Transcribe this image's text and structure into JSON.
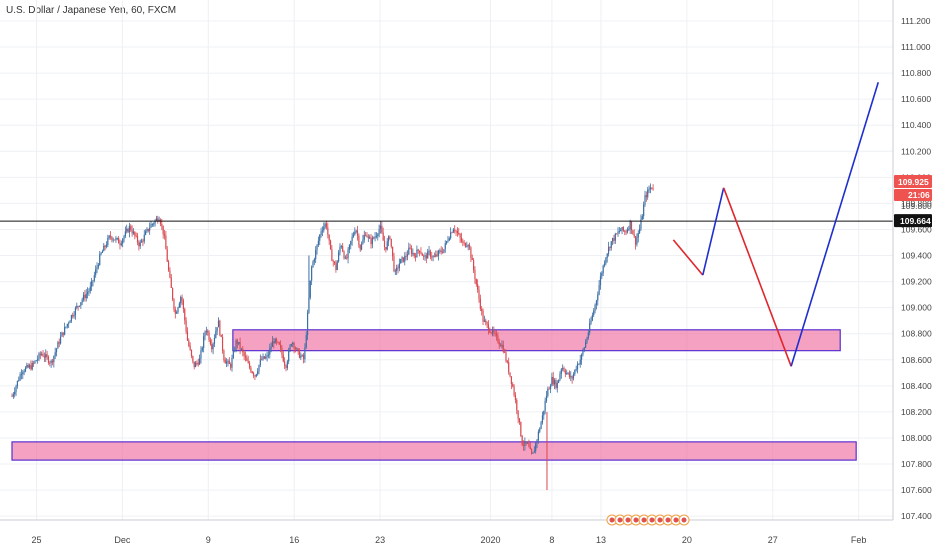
{
  "chart_data": {
    "type": "candlestick",
    "title": "U.S. Dollar / Japanese Yen, 60, FXCM",
    "ylim": [
      107.3,
      111.3
    ],
    "y_ticks": [
      "111.200",
      "111.000",
      "110.800",
      "110.600",
      "110.400",
      "110.200",
      "110.000",
      "109.800",
      "109.600",
      "109.400",
      "109.200",
      "109.000",
      "108.800",
      "108.600",
      "108.400",
      "108.200",
      "108.000",
      "107.800",
      "107.600",
      "107.400"
    ],
    "x_ticks": [
      "25",
      "Dec",
      "9",
      "16",
      "23",
      "2020",
      "8",
      "13",
      "20",
      "27",
      "Feb"
    ],
    "price_badges": {
      "last": "109.925",
      "countdown": "21:06",
      "hline": "109.664",
      "hidden_tick": "109.800"
    },
    "hline_value": 109.664,
    "zones": [
      {
        "from_day": 18,
        "to_day": 67.5,
        "low": 108.67,
        "high": 108.83
      },
      {
        "from_day": 0,
        "to_day": 68.8,
        "low": 107.83,
        "high": 107.97
      }
    ],
    "projection": [
      {
        "day": 53.9,
        "price": 109.52,
        "color": "red"
      },
      {
        "day": 56.3,
        "price": 109.25,
        "color": "blue"
      },
      {
        "day": 58.0,
        "price": 109.92,
        "color": "red"
      },
      {
        "day": 63.5,
        "price": 108.55,
        "color": "blue"
      },
      {
        "day": 70.6,
        "price": 110.73,
        "color": "blue"
      }
    ],
    "price_path": [
      [
        0.0,
        108.32
      ],
      [
        0.8,
        108.52
      ],
      [
        1.6,
        108.55
      ],
      [
        2.4,
        108.65
      ],
      [
        3.2,
        108.58
      ],
      [
        4.0,
        108.78
      ],
      [
        4.8,
        108.93
      ],
      [
        5.6,
        109.05
      ],
      [
        6.4,
        109.15
      ],
      [
        7.2,
        109.4
      ],
      [
        8.0,
        109.55
      ],
      [
        8.8,
        109.5
      ],
      [
        9.6,
        109.62
      ],
      [
        10.4,
        109.48
      ],
      [
        11.2,
        109.62
      ],
      [
        12.0,
        109.7
      ],
      [
        12.4,
        109.55
      ],
      [
        12.8,
        109.25
      ],
      [
        13.3,
        108.95
      ],
      [
        13.8,
        109.1
      ],
      [
        14.3,
        108.75
      ],
      [
        14.8,
        108.55
      ],
      [
        15.3,
        108.6
      ],
      [
        15.8,
        108.85
      ],
      [
        16.3,
        108.7
      ],
      [
        16.8,
        108.9
      ],
      [
        17.3,
        108.6
      ],
      [
        17.8,
        108.55
      ],
      [
        18.3,
        108.75
      ],
      [
        18.8,
        108.65
      ],
      [
        19.3,
        108.55
      ],
      [
        19.8,
        108.48
      ],
      [
        20.3,
        108.6
      ],
      [
        20.8,
        108.62
      ],
      [
        21.3,
        108.75
      ],
      [
        21.8,
        108.7
      ],
      [
        22.3,
        108.55
      ],
      [
        22.8,
        108.75
      ],
      [
        23.3,
        108.65
      ],
      [
        23.8,
        108.6
      ],
      [
        24.1,
        108.95
      ],
      [
        24.4,
        109.3
      ],
      [
        24.8,
        109.45
      ],
      [
        25.2,
        109.6
      ],
      [
        25.6,
        109.65
      ],
      [
        26.0,
        109.4
      ],
      [
        26.4,
        109.3
      ],
      [
        26.8,
        109.5
      ],
      [
        27.2,
        109.35
      ],
      [
        27.6,
        109.5
      ],
      [
        28.0,
        109.62
      ],
      [
        28.4,
        109.45
      ],
      [
        28.8,
        109.58
      ],
      [
        29.2,
        109.5
      ],
      [
        29.6,
        109.55
      ],
      [
        30.0,
        109.62
      ],
      [
        30.4,
        109.45
      ],
      [
        30.8,
        109.55
      ],
      [
        31.2,
        109.25
      ],
      [
        31.6,
        109.35
      ],
      [
        32.0,
        109.38
      ],
      [
        32.4,
        109.45
      ],
      [
        32.8,
        109.4
      ],
      [
        33.2,
        109.45
      ],
      [
        33.6,
        109.38
      ],
      [
        34.0,
        109.42
      ],
      [
        34.4,
        109.38
      ],
      [
        34.8,
        109.42
      ],
      [
        35.2,
        109.45
      ],
      [
        35.6,
        109.55
      ],
      [
        36.0,
        109.62
      ],
      [
        36.4,
        109.55
      ],
      [
        36.8,
        109.48
      ],
      [
        37.2,
        109.5
      ],
      [
        37.6,
        109.3
      ],
      [
        38.0,
        109.1
      ],
      [
        38.4,
        108.9
      ],
      [
        38.8,
        108.85
      ],
      [
        39.2,
        108.8
      ],
      [
        39.6,
        108.75
      ],
      [
        40.0,
        108.7
      ],
      [
        40.4,
        108.55
      ],
      [
        40.8,
        108.4
      ],
      [
        41.2,
        108.2
      ],
      [
        41.6,
        107.95
      ],
      [
        42.0,
        107.95
      ],
      [
        42.4,
        107.85
      ],
      [
        42.8,
        108.0
      ],
      [
        43.2,
        108.15
      ],
      [
        43.6,
        108.35
      ],
      [
        44.0,
        108.45
      ],
      [
        44.4,
        108.4
      ],
      [
        44.8,
        108.55
      ],
      [
        45.2,
        108.5
      ],
      [
        45.6,
        108.45
      ],
      [
        46.0,
        108.55
      ],
      [
        46.4,
        108.62
      ],
      [
        46.8,
        108.75
      ],
      [
        47.2,
        108.9
      ],
      [
        47.6,
        109.05
      ],
      [
        48.0,
        109.25
      ],
      [
        48.4,
        109.4
      ],
      [
        48.8,
        109.5
      ],
      [
        49.2,
        109.55
      ],
      [
        49.6,
        109.6
      ],
      [
        50.0,
        109.58
      ],
      [
        50.4,
        109.65
      ],
      [
        50.8,
        109.5
      ],
      [
        51.2,
        109.62
      ],
      [
        51.6,
        109.85
      ],
      [
        52.0,
        109.92
      ],
      [
        52.3,
        109.93
      ]
    ]
  }
}
